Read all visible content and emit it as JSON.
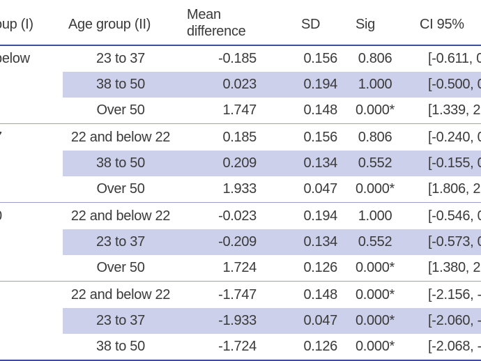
{
  "headers": {
    "age_group_i": "oup (I)",
    "age_group_ii": "Age group (II)",
    "mean_difference_1": "Mean",
    "mean_difference_2": "difference",
    "sd": "SD",
    "sig": "Sig",
    "ci": "CI 95%"
  },
  "groups": [
    {
      "label": "below",
      "rows": [
        {
          "age_group_ii": "23 to 37",
          "mean_difference": "-0.185",
          "sd": "0.156",
          "sig": "0.806",
          "ci": "[-0.611, 0"
        },
        {
          "age_group_ii": "38 to 50",
          "mean_difference": "0.023",
          "sd": "0.194",
          "sig": "1.000",
          "ci": "[-0.500, 0"
        },
        {
          "age_group_ii": "Over 50",
          "mean_difference": "1.747",
          "sd": "0.148",
          "sig": "0.000*",
          "ci": "[1.339, 2"
        }
      ]
    },
    {
      "label": "7",
      "rows": [
        {
          "age_group_ii": "22 and below 22",
          "mean_difference": "0.185",
          "sd": "0.156",
          "sig": "0.806",
          "ci": "[-0.240, 0"
        },
        {
          "age_group_ii": "38 to 50",
          "mean_difference": "0.209",
          "sd": "0.134",
          "sig": "0.552",
          "ci": "[-0.155, 0"
        },
        {
          "age_group_ii": "Over 50",
          "mean_difference": "1.933",
          "sd": "0.047",
          "sig": "0.000*",
          "ci": "[1.806, 2"
        }
      ]
    },
    {
      "label": "0",
      "rows": [
        {
          "age_group_ii": "22 and below 22",
          "mean_difference": "-0.023",
          "sd": "0.194",
          "sig": "1.000",
          "ci": "[-0.546, 0"
        },
        {
          "age_group_ii": "23 to 37",
          "mean_difference": "-0.209",
          "sd": "0.134",
          "sig": "0.552",
          "ci": "[-0.573, 0"
        },
        {
          "age_group_ii": "Over 50",
          "mean_difference": "1.724",
          "sd": "0.126",
          "sig": "0.000*",
          "ci": "[1.380, 2"
        }
      ]
    },
    {
      "label": "",
      "rows": [
        {
          "age_group_ii": "22 and below 22",
          "mean_difference": "-1.747",
          "sd": "0.148",
          "sig": "0.000*",
          "ci": "[-2.156, -"
        },
        {
          "age_group_ii": "23 to 37",
          "mean_difference": "-1.933",
          "sd": "0.047",
          "sig": "0.000*",
          "ci": "[-2.060, -"
        },
        {
          "age_group_ii": "38 to 50",
          "mean_difference": "-1.724",
          "sd": "0.126",
          "sig": "0.000*",
          "ci": "[-2.068, -"
        }
      ]
    }
  ]
}
